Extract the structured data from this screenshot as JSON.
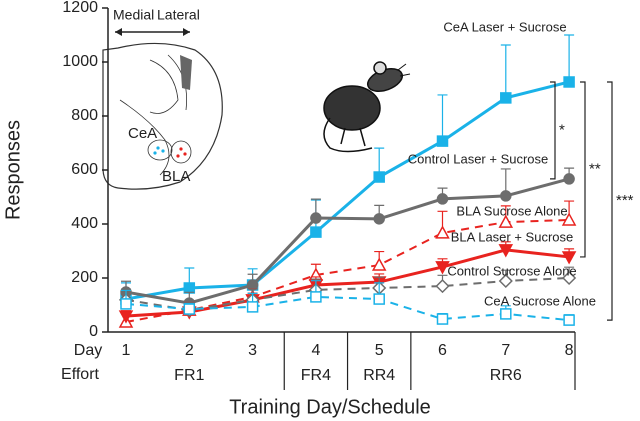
{
  "chart_data": {
    "type": "line",
    "y_label": "Responses",
    "x_label": "Training Day/Schedule",
    "categories": [
      "1",
      "2",
      "3",
      "4",
      "5",
      "6",
      "7",
      "8"
    ],
    "ylim": [
      0,
      1200
    ],
    "yticks": [
      0,
      200,
      400,
      600,
      800,
      1000,
      1200
    ],
    "schedule": {
      "day_label": "Day",
      "effort_label": "Effort",
      "efforts": [
        "FR1",
        "FR1",
        "FR1",
        "FR4",
        "RR4",
        "RR6",
        "RR6",
        "RR6"
      ]
    },
    "series": [
      {
        "name": "CeA Laser + Sucrose",
        "color": "#1ab2e8",
        "dashed": false,
        "marker": "square",
        "filled": true,
        "values": [
          122,
          163,
          174,
          370,
          574,
          707,
          867,
          926
        ],
        "errors": [
          60,
          74,
          60,
          119,
          107,
          171,
          196,
          174
        ]
      },
      {
        "name": "Control Laser + Sucrose",
        "color": "#6d6d6d",
        "dashed": false,
        "marker": "circle",
        "filled": true,
        "values": [
          148,
          107,
          174,
          422,
          419,
          493,
          504,
          567
        ],
        "errors": [
          40,
          40,
          40,
          70,
          50,
          40,
          100,
          40
        ]
      },
      {
        "name": "BLA Sucrose Alone",
        "color": "#e8231f",
        "dashed": true,
        "marker": "triangle-up",
        "filled": false,
        "values": [
          37,
          81,
          130,
          211,
          248,
          367,
          407,
          415
        ],
        "errors": [
          30,
          30,
          30,
          40,
          50,
          80,
          60,
          70
        ]
      },
      {
        "name": "BLA Laser + Sucrose",
        "color": "#e8231f",
        "dashed": false,
        "marker": "triangle-down",
        "filled": true,
        "values": [
          59,
          74,
          119,
          174,
          185,
          241,
          304,
          278
        ],
        "errors": [
          20,
          20,
          25,
          30,
          30,
          30,
          30,
          30
        ]
      },
      {
        "name": "Control Sucrose Alone",
        "color": "#6d6d6d",
        "dashed": true,
        "marker": "diamond",
        "filled": false,
        "values": [
          119,
          81,
          119,
          156,
          163,
          170,
          189,
          200
        ],
        "errors": [
          40,
          30,
          40,
          40,
          40,
          40,
          40,
          40
        ]
      },
      {
        "name": "CeA Sucrose Alone",
        "color": "#1ab2e8",
        "dashed": true,
        "marker": "square",
        "filled": false,
        "values": [
          104,
          85,
          93,
          130,
          122,
          48,
          67,
          44
        ],
        "errors": [
          50,
          20,
          50,
          60,
          60,
          20,
          30,
          20
        ]
      }
    ],
    "significance": [
      {
        "label": "*"
      },
      {
        "label": "**"
      },
      {
        "label": "***"
      }
    ],
    "inset": {
      "medial": "Medial",
      "lateral": "Lateral",
      "cea": "CeA",
      "bla": "BLA"
    }
  }
}
